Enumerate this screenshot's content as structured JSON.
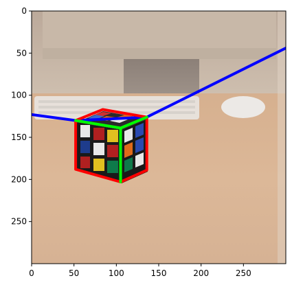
{
  "chart_data": {
    "type": "image",
    "title": "",
    "xlabel": "",
    "ylabel": "",
    "xlim": [
      0,
      300
    ],
    "ylim": [
      300,
      0
    ],
    "x_ticks": [
      "0",
      "50",
      "100",
      "150",
      "200",
      "250"
    ],
    "y_ticks": [
      "0",
      "50",
      "100",
      "150",
      "200",
      "250"
    ],
    "grid": false,
    "overlay_lines": [
      {
        "name": "",
        "color": "#0000ff",
        "points": [
          [
            0,
            123
          ],
          [
            52,
            130
          ],
          [
            136,
            126
          ],
          [
            300,
            44
          ]
        ]
      },
      {
        "name": "",
        "color": "#ff0000",
        "points": [
          [
            52,
            130
          ],
          [
            52,
            188
          ],
          [
            105,
            203
          ],
          [
            136,
            189
          ],
          [
            136,
            126
          ],
          [
            84,
            117
          ],
          [
            52,
            130
          ]
        ]
      },
      {
        "name": "",
        "color": "#00ff00",
        "points": [
          [
            52,
            130
          ],
          [
            105,
            139
          ],
          [
            136,
            126
          ]
        ]
      },
      {
        "name": "",
        "color": "#00ff00",
        "points": [
          [
            105,
            139
          ],
          [
            105,
            203
          ]
        ]
      }
    ]
  }
}
